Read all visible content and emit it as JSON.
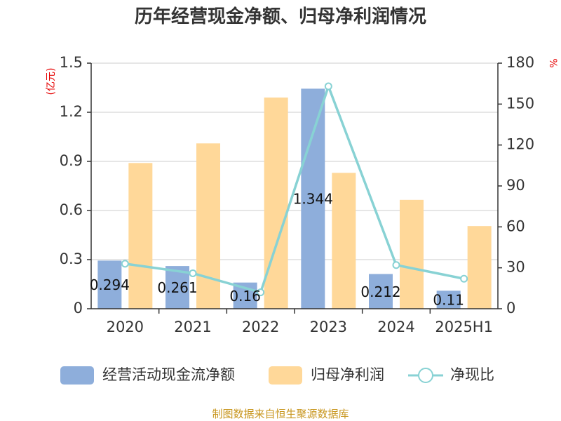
{
  "chart_data": {
    "type": "bar+line",
    "title": "历年经营现金净额、归母净利润情况",
    "categories": [
      "2020",
      "2021",
      "2022",
      "2023",
      "2024",
      "2025H1"
    ],
    "series": [
      {
        "name": "经营活动现金流净额",
        "type": "bar",
        "axis": "left",
        "color": "#8eaedb",
        "values": [
          0.294,
          0.261,
          0.16,
          1.344,
          0.212,
          0.11
        ],
        "labels": [
          "0.294",
          "0.261",
          "0.16",
          "1.344",
          "0.212",
          "0.11"
        ]
      },
      {
        "name": "归母净利润",
        "type": "bar",
        "axis": "left",
        "color": "#ffd899",
        "values": [
          0.89,
          1.01,
          1.29,
          0.83,
          0.665,
          0.505
        ]
      },
      {
        "name": "净现比",
        "type": "line",
        "axis": "right",
        "color": "#88d2d4",
        "values": [
          33,
          26,
          12,
          163,
          32,
          22
        ]
      }
    ],
    "y_left": {
      "label": "(亿元)",
      "min": 0,
      "max": 1.5,
      "ticks": [
        "0",
        "0.3",
        "0.6",
        "0.9",
        "1.2",
        "1.5"
      ]
    },
    "y_right": {
      "label": "%",
      "min": 0,
      "max": 180,
      "ticks": [
        "0",
        "30",
        "60",
        "90",
        "120",
        "150",
        "180"
      ]
    },
    "grid": true,
    "legend_position": "bottom",
    "source": "制图数据来自恒生聚源数据库"
  }
}
